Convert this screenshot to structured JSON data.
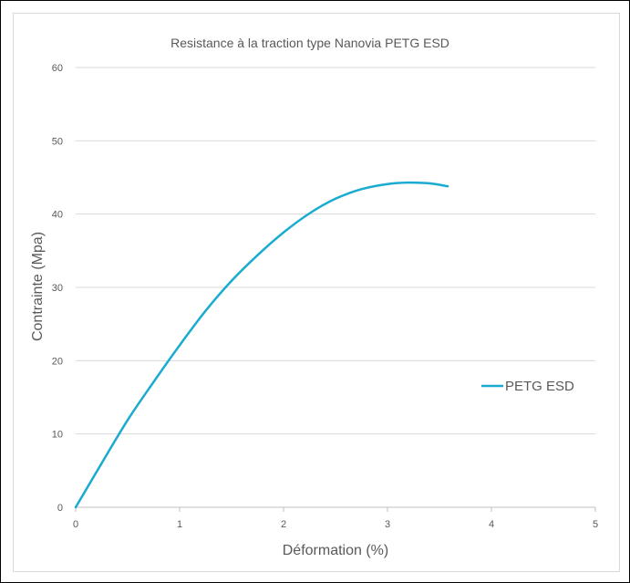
{
  "chart_data": {
    "type": "line",
    "title": "Resistance à la traction type Nanovia PETG ESD",
    "xlabel": "Déformation (%)",
    "ylabel": "Contrainte  (Mpa)",
    "xlim": [
      0,
      5
    ],
    "ylim": [
      0,
      60
    ],
    "x_ticks": [
      "0",
      "1",
      "2",
      "3",
      "4",
      "5"
    ],
    "y_ticks": [
      "0",
      "10",
      "20",
      "30",
      "40",
      "50",
      "60"
    ],
    "grid": true,
    "legend_position": "right",
    "series": [
      {
        "name": "PETG ESD",
        "color": "#1aabd0",
        "x": [
          0,
          0.25,
          0.5,
          0.75,
          1.0,
          1.25,
          1.5,
          1.75,
          2.0,
          2.25,
          2.5,
          2.75,
          3.0,
          3.2,
          3.4,
          3.58
        ],
        "y": [
          0,
          6.0,
          11.9,
          17.1,
          22.1,
          26.8,
          30.9,
          34.4,
          37.5,
          40.1,
          42.1,
          43.4,
          44.1,
          44.3,
          44.2,
          43.8
        ]
      }
    ]
  }
}
